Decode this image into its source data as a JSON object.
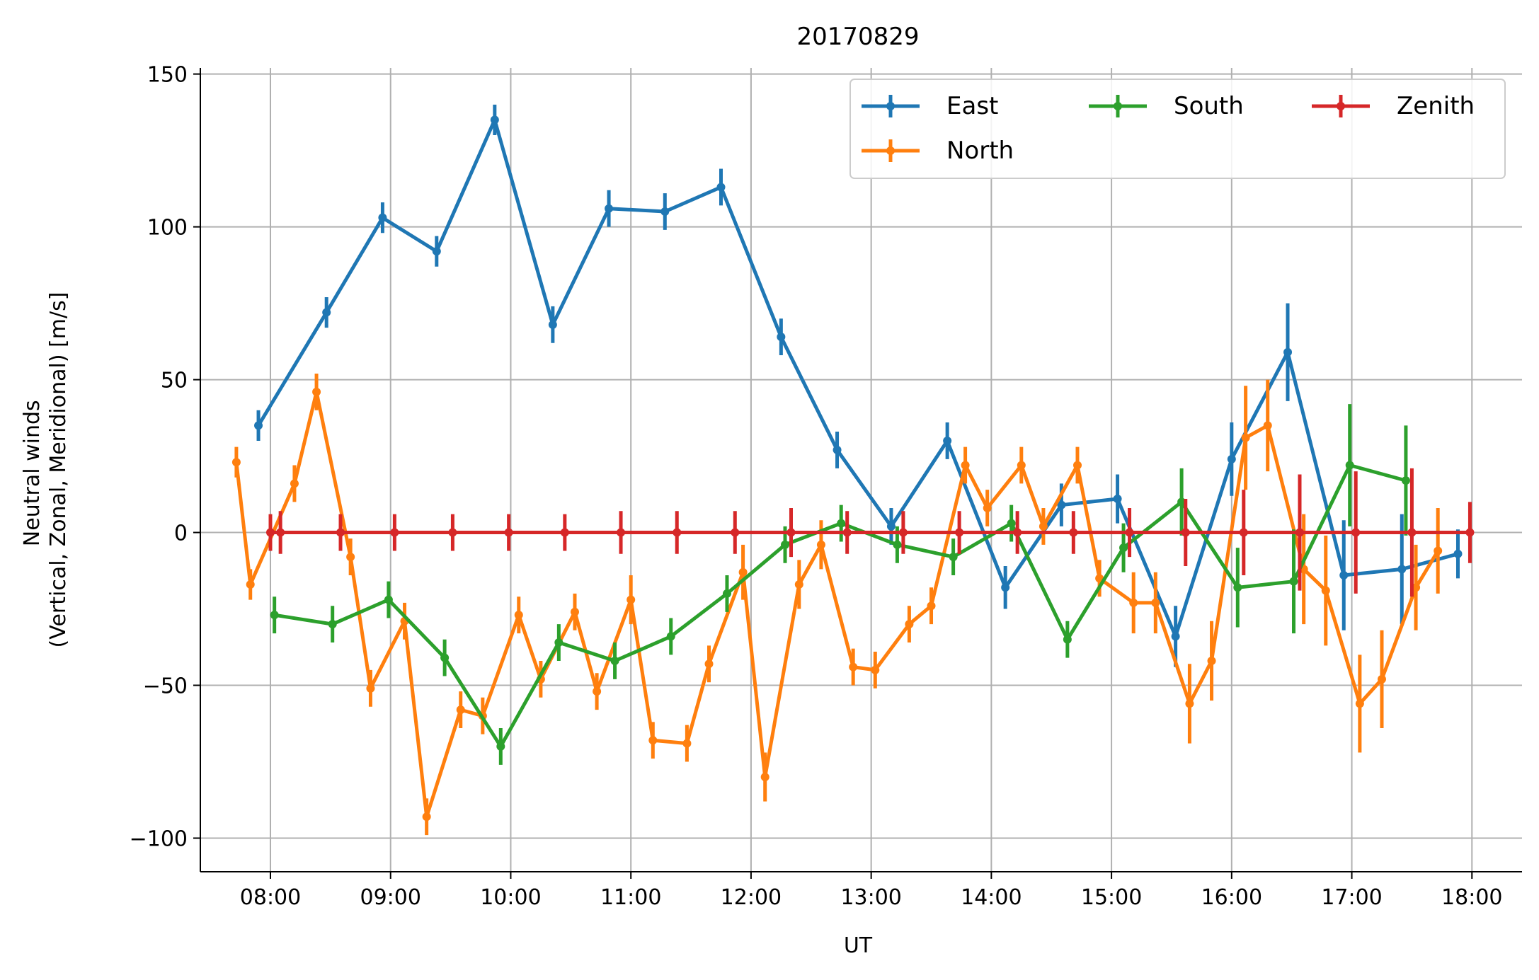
{
  "chart_data": {
    "type": "line",
    "title": "20170829",
    "xlabel": "UT",
    "ylabel_lines": [
      "Neutral winds",
      "(Vertical, Zonal, Meridional) [m/s]"
    ],
    "xlim": [
      "07:25",
      "18:25"
    ],
    "ylim": [
      -111,
      152
    ],
    "xticks": [
      "08:00",
      "09:00",
      "10:00",
      "11:00",
      "12:00",
      "13:00",
      "14:00",
      "15:00",
      "16:00",
      "17:00",
      "18:00"
    ],
    "yticks": [
      -100,
      -50,
      0,
      50,
      100,
      150
    ],
    "grid": true,
    "legend": {
      "placement": "top-right",
      "columns": 3
    },
    "series": [
      {
        "name": "East",
        "color": "#1f77b4",
        "points": [
          [
            "07:54",
            35,
            5
          ],
          [
            "08:28",
            72,
            5
          ],
          [
            "08:56",
            103,
            5
          ],
          [
            "09:23",
            92,
            5
          ],
          [
            "09:52",
            135,
            5
          ],
          [
            "10:21",
            68,
            6
          ],
          [
            "10:49",
            106,
            6
          ],
          [
            "11:17",
            105,
            6
          ],
          [
            "11:45",
            113,
            6
          ],
          [
            "12:15",
            64,
            6
          ],
          [
            "12:43",
            27,
            6
          ],
          [
            "13:10",
            2,
            6
          ],
          [
            "13:38",
            30,
            6
          ],
          [
            "14:07",
            -18,
            7
          ],
          [
            "14:35",
            9,
            7
          ],
          [
            "15:03",
            11,
            8
          ],
          [
            "15:32",
            -34,
            10
          ],
          [
            "16:00",
            24,
            12
          ],
          [
            "16:28",
            59,
            16
          ],
          [
            "16:56",
            -14,
            18
          ],
          [
            "17:25",
            -12,
            18
          ],
          [
            "17:53",
            -7,
            8
          ]
        ]
      },
      {
        "name": "North",
        "color": "#ff7f0e",
        "points": [
          [
            "07:43",
            23,
            5
          ],
          [
            "07:50",
            -17,
            5
          ],
          [
            "08:12",
            16,
            6
          ],
          [
            "08:23",
            46,
            6
          ],
          [
            "08:40",
            -8,
            6
          ],
          [
            "08:50",
            -51,
            6
          ],
          [
            "09:07",
            -29,
            6
          ],
          [
            "09:18",
            -93,
            6
          ],
          [
            "09:35",
            -58,
            6
          ],
          [
            "09:46",
            -60,
            6
          ],
          [
            "10:04",
            -27,
            6
          ],
          [
            "10:15",
            -48,
            6
          ],
          [
            "10:32",
            -26,
            6
          ],
          [
            "10:43",
            -52,
            6
          ],
          [
            "11:00",
            -22,
            8
          ],
          [
            "11:11",
            -68,
            6
          ],
          [
            "11:28",
            -69,
            6
          ],
          [
            "11:39",
            -43,
            6
          ],
          [
            "11:56",
            -13,
            9
          ],
          [
            "12:07",
            -80,
            8
          ],
          [
            "12:24",
            -17,
            8
          ],
          [
            "12:35",
            -4,
            8
          ],
          [
            "12:51",
            -44,
            6
          ],
          [
            "13:02",
            -45,
            6
          ],
          [
            "13:19",
            -30,
            6
          ],
          [
            "13:30",
            -24,
            6
          ],
          [
            "13:47",
            22,
            6
          ],
          [
            "13:58",
            8,
            6
          ],
          [
            "14:15",
            22,
            6
          ],
          [
            "14:26",
            2,
            6
          ],
          [
            "14:43",
            22,
            6
          ],
          [
            "14:54",
            -15,
            6
          ],
          [
            "15:11",
            -23,
            10
          ],
          [
            "15:22",
            -23,
            10
          ],
          [
            "15:39",
            -56,
            13
          ],
          [
            "15:50",
            -42,
            13
          ],
          [
            "16:07",
            31,
            17
          ],
          [
            "16:18",
            35,
            15
          ],
          [
            "16:36",
            -12,
            18
          ],
          [
            "16:47",
            -19,
            18
          ],
          [
            "17:04",
            -56,
            16
          ],
          [
            "17:15",
            -48,
            16
          ],
          [
            "17:32",
            -18,
            14
          ],
          [
            "17:43",
            -6,
            14
          ]
        ]
      },
      {
        "name": "South",
        "color": "#2ca02c",
        "points": [
          [
            "08:02",
            -27,
            6
          ],
          [
            "08:31",
            -30,
            6
          ],
          [
            "08:59",
            -22,
            6
          ],
          [
            "09:27",
            -41,
            6
          ],
          [
            "09:55",
            -70,
            6
          ],
          [
            "10:24",
            -36,
            6
          ],
          [
            "10:52",
            -42,
            6
          ],
          [
            "11:20",
            -34,
            6
          ],
          [
            "11:48",
            -20,
            6
          ],
          [
            "12:17",
            -4,
            6
          ],
          [
            "12:45",
            3,
            6
          ],
          [
            "13:13",
            -4,
            6
          ],
          [
            "13:41",
            -8,
            6
          ],
          [
            "14:10",
            3,
            6
          ],
          [
            "14:38",
            -35,
            6
          ],
          [
            "15:06",
            -5,
            8
          ],
          [
            "15:35",
            10,
            11
          ],
          [
            "16:03",
            -18,
            13
          ],
          [
            "16:31",
            -16,
            17
          ],
          [
            "16:59",
            22,
            20
          ],
          [
            "17:27",
            17,
            18
          ]
        ]
      },
      {
        "name": "Zenith",
        "color": "#d62728",
        "points": [
          [
            "08:00",
            0,
            6
          ],
          [
            "08:05",
            0,
            7
          ],
          [
            "08:35",
            0,
            6
          ],
          [
            "09:02",
            0,
            6
          ],
          [
            "09:31",
            0,
            6
          ],
          [
            "09:59",
            0,
            6
          ],
          [
            "10:27",
            0,
            6
          ],
          [
            "10:55",
            0,
            7
          ],
          [
            "11:23",
            0,
            7
          ],
          [
            "11:52",
            0,
            7
          ],
          [
            "12:20",
            0,
            8
          ],
          [
            "12:48",
            0,
            7
          ],
          [
            "13:16",
            0,
            7
          ],
          [
            "13:44",
            0,
            7
          ],
          [
            "14:13",
            0,
            7
          ],
          [
            "14:41",
            0,
            7
          ],
          [
            "15:09",
            0,
            8
          ],
          [
            "15:37",
            0,
            11
          ],
          [
            "16:06",
            0,
            14
          ],
          [
            "16:34",
            0,
            19
          ],
          [
            "17:02",
            0,
            20
          ],
          [
            "17:30",
            0,
            21
          ],
          [
            "17:59",
            0,
            10
          ]
        ]
      }
    ]
  }
}
